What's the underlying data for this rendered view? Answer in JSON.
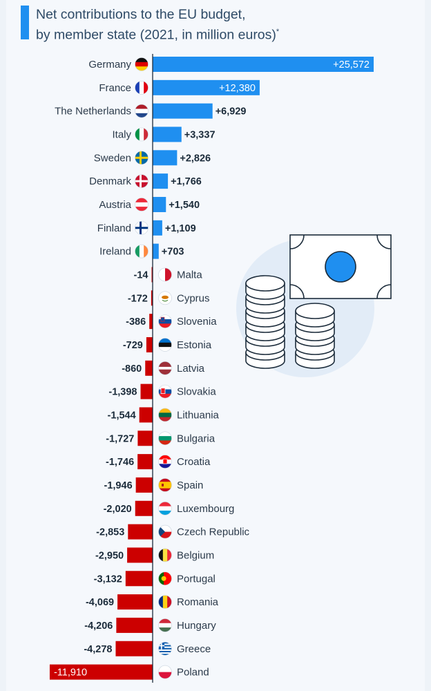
{
  "title": {
    "line1": "Net contributions to the EU budget,",
    "line2": "by member state (2021, in million euros)",
    "footnote_mark": "*"
  },
  "colors": {
    "positive": "#1f8ff0",
    "negative": "#cc0000",
    "axis": "#1b2b3a",
    "label": "#2b3a4a",
    "title_accent": "#1f8ff0"
  },
  "chart_data": {
    "type": "bar",
    "orientation": "horizontal",
    "categories": [
      "Germany",
      "France",
      "The Netherlands",
      "Italy",
      "Sweden",
      "Denmark",
      "Austria",
      "Finland",
      "Ireland",
      "Malta",
      "Cyprus",
      "Slovenia",
      "Estonia",
      "Latvia",
      "Slovakia",
      "Lithuania",
      "Bulgaria",
      "Croatia",
      "Spain",
      "Luxembourg",
      "Czech Republic",
      "Belgium",
      "Portugal",
      "Romania",
      "Hungary",
      "Greece",
      "Poland"
    ],
    "values": [
      25572,
      12380,
      6929,
      3337,
      2826,
      1766,
      1540,
      1109,
      703,
      -14,
      -172,
      -386,
      -729,
      -860,
      -1398,
      -1544,
      -1727,
      -1746,
      -1946,
      -2020,
      -2853,
      -2950,
      -3132,
      -4069,
      -4206,
      -4278,
      -11910
    ],
    "labels": [
      "+25,572",
      "+12,380",
      "+6,929",
      "+3,337",
      "+2,826",
      "+1,766",
      "+1,540",
      "+1,109",
      "+703",
      "-14",
      "-172",
      "-386",
      "-729",
      "-860",
      "-1,398",
      "-1,544",
      "-1,727",
      "-1,746",
      "-1,946",
      "-2,020",
      "-2,853",
      "-2,950",
      "-3,132",
      "-4,069",
      "-4,206",
      "-4,278",
      "-11,910"
    ],
    "flag_icons": [
      "germany-flag-icon",
      "france-flag-icon",
      "netherlands-flag-icon",
      "italy-flag-icon",
      "sweden-flag-icon",
      "denmark-flag-icon",
      "austria-flag-icon",
      "finland-flag-icon",
      "ireland-flag-icon",
      "malta-flag-icon",
      "cyprus-flag-icon",
      "slovenia-flag-icon",
      "estonia-flag-icon",
      "latvia-flag-icon",
      "slovakia-flag-icon",
      "lithuania-flag-icon",
      "bulgaria-flag-icon",
      "croatia-flag-icon",
      "spain-flag-icon",
      "luxembourg-flag-icon",
      "czech-republic-flag-icon",
      "belgium-flag-icon",
      "portugal-flag-icon",
      "romania-flag-icon",
      "hungary-flag-icon",
      "greece-flag-icon",
      "poland-flag-icon"
    ],
    "xlim": [
      -11910,
      25572
    ],
    "grid": false,
    "legend": "none"
  }
}
